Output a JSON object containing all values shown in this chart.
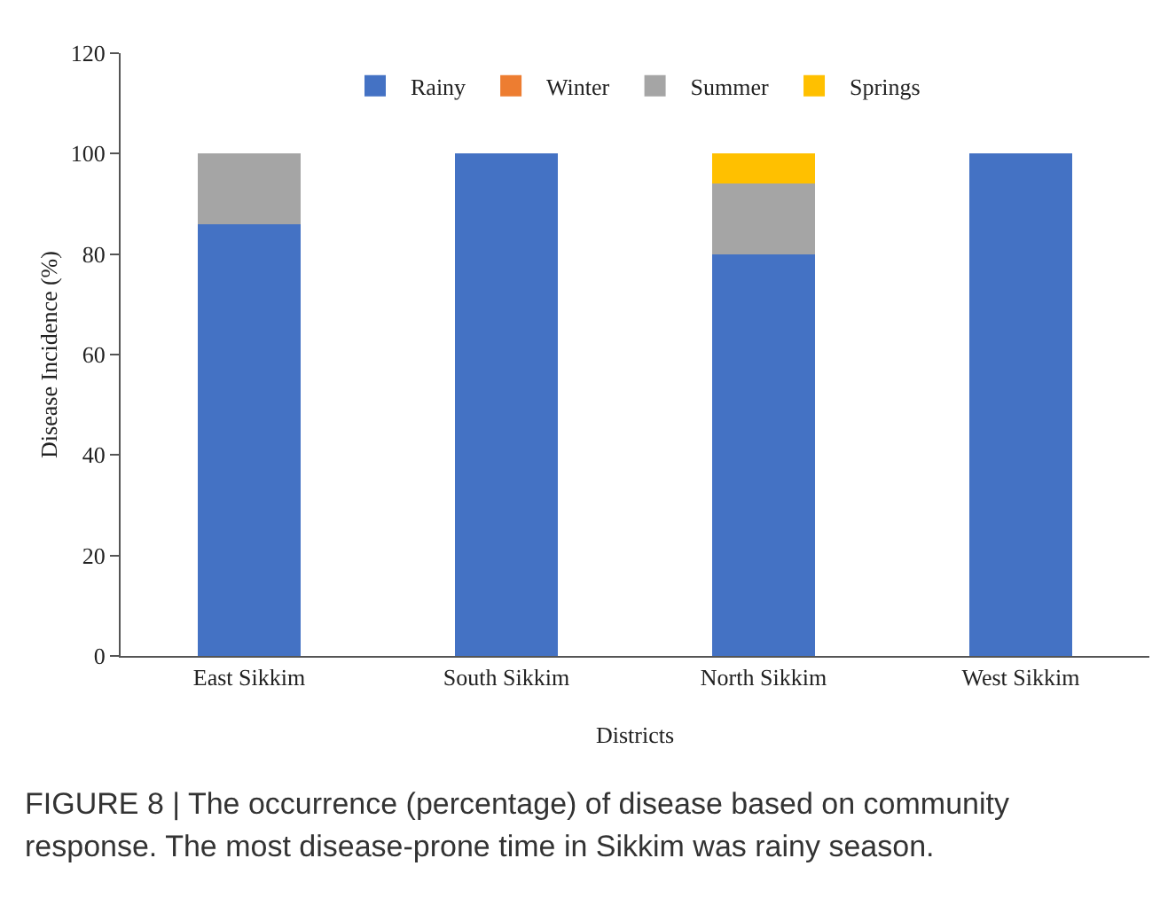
{
  "chart_data": {
    "type": "bar",
    "stacked": true,
    "xlabel": "Districts",
    "ylabel": "Disease Incidence (%)",
    "categories": [
      "East Sikkim",
      "South Sikkim",
      "North Sikkim",
      "West Sikkim"
    ],
    "series": [
      {
        "name": "Rainy",
        "color": "#4472c4",
        "values": [
          86,
          100,
          80,
          100
        ]
      },
      {
        "name": "Winter",
        "color": "#ed7d31",
        "values": [
          0,
          0,
          0,
          0
        ]
      },
      {
        "name": "Summer",
        "color": "#a5a5a5",
        "values": [
          14,
          0,
          14,
          0
        ]
      },
      {
        "name": "Springs",
        "color": "#ffc000",
        "values": [
          0,
          0,
          6,
          0
        ]
      }
    ],
    "ylim": [
      0,
      120
    ],
    "yticks": [
      0,
      20,
      40,
      60,
      80,
      100,
      120
    ],
    "grid": false,
    "legend": "top",
    "annotations": [
      "FIGURE 8 | The occurrence (percentage) of disease based on community response. The most disease-prone time in Sikkim was rainy season."
    ]
  }
}
